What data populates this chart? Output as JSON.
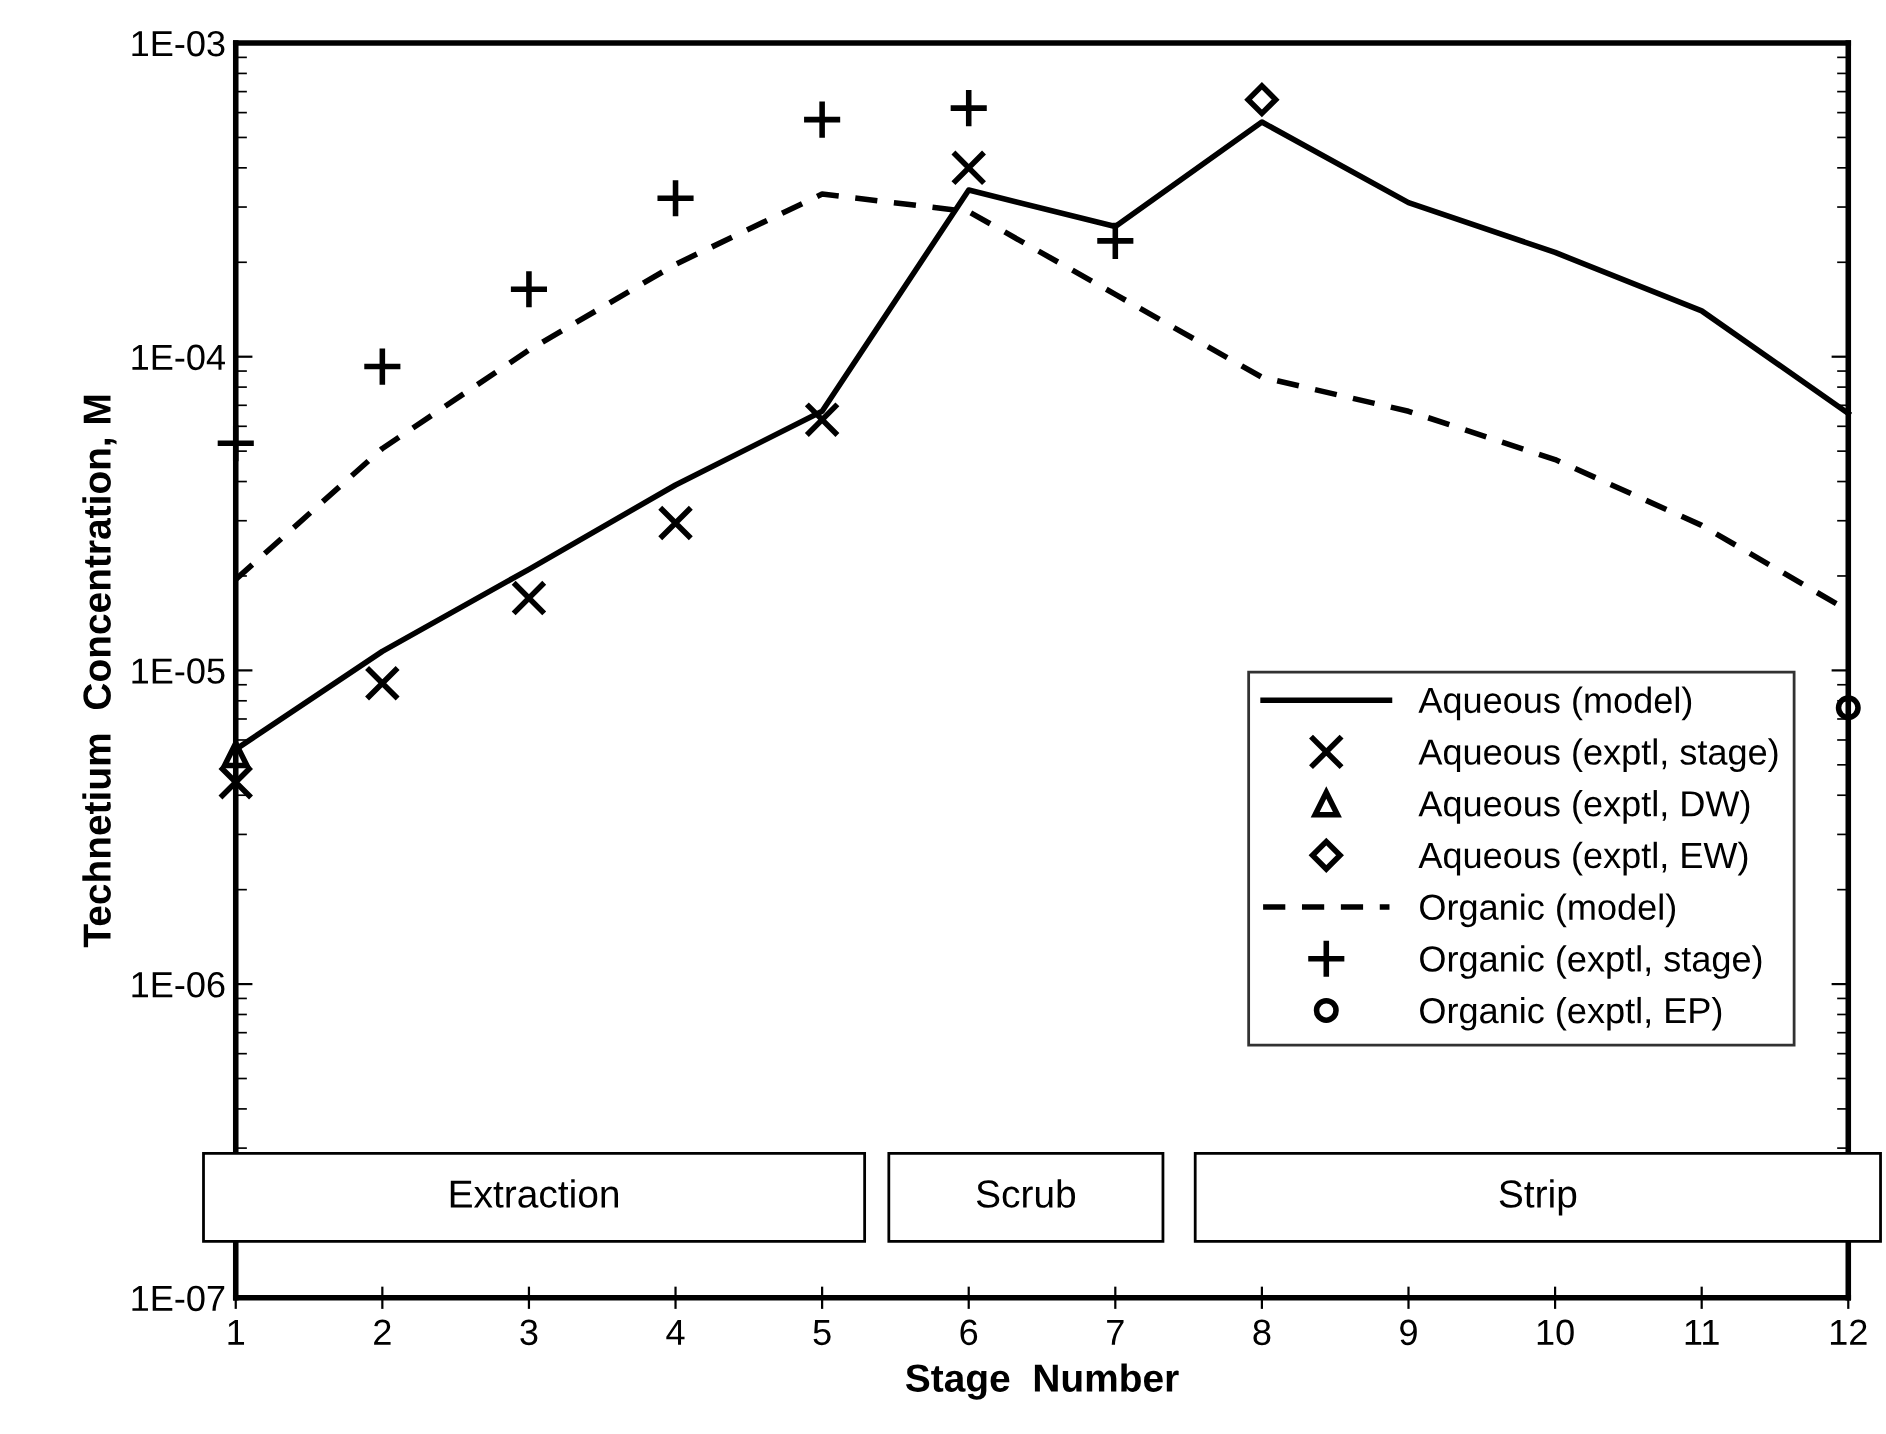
{
  "chart_data": {
    "type": "line",
    "xlabel": "Stage  Number",
    "ylabel": "Technetium  Concentration, M",
    "log": "y",
    "x": [
      1,
      2,
      3,
      4,
      5,
      6,
      7,
      8,
      9,
      10,
      11,
      12
    ],
    "xlim": [
      1,
      12
    ],
    "xticks": [
      1,
      2,
      3,
      4,
      5,
      6,
      7,
      8,
      9,
      10,
      11,
      12
    ],
    "ylim": [
      1e-07,
      0.001
    ],
    "yticks": [
      {
        "value": 1e-07,
        "label": "1E-07"
      },
      {
        "value": 1e-06,
        "label": "1E-06"
      },
      {
        "value": 1e-05,
        "label": "1E-05"
      },
      {
        "value": 0.0001,
        "label": "1E-04"
      },
      {
        "value": 0.001,
        "label": "1E-03"
      }
    ],
    "grid": false,
    "legend": "right",
    "series": [
      {
        "name": "Aqueous (model)",
        "color": "#000000",
        "line_style": "solid",
        "marker": "none",
        "values": [
          5.6e-06,
          1.15e-05,
          2.1e-05,
          3.9e-05,
          6.7e-05,
          0.00034,
          0.00026,
          0.00056,
          0.00031,
          0.000215,
          0.00014,
          6.6e-05
        ]
      },
      {
        "name": "Aqueous (exptl, stage)",
        "type": "scatter",
        "color": "#000000",
        "marker": "cross",
        "x": [
          1,
          2,
          3,
          4,
          5,
          6
        ],
        "values": [
          4.4e-06,
          9.1e-06,
          1.7e-05,
          2.95e-05,
          6.3e-05,
          0.0004
        ]
      },
      {
        "name": "Aqueous (exptl, DW)",
        "type": "scatter",
        "color": "#000000",
        "marker": "triangle",
        "x": [
          1
        ],
        "values": [
          5.4e-06
        ]
      },
      {
        "name": "Aqueous (exptl, EW)",
        "type": "scatter",
        "color": "#000000",
        "marker": "diamond",
        "x": [
          8
        ],
        "values": [
          0.00066
        ]
      },
      {
        "name": "Organic (model)",
        "color": "#000000",
        "line_style": "dashed",
        "marker": "none",
        "values": [
          1.95e-05,
          5.1e-05,
          0.000105,
          0.000197,
          0.00033,
          0.00029,
          0.000158,
          8.6e-05,
          6.7e-05,
          4.7e-05,
          2.9e-05,
          1.55e-05
        ]
      },
      {
        "name": "Organic (exptl, stage)",
        "type": "scatter",
        "color": "#000000",
        "marker": "plus",
        "x": [
          1,
          2,
          3,
          4,
          5,
          6,
          7
        ],
        "values": [
          5.3e-05,
          9.3e-05,
          0.000164,
          0.00032,
          0.00057,
          0.00062,
          0.000234
        ]
      },
      {
        "name": "Organic (exptl, EP)",
        "type": "scatter",
        "color": "#000000",
        "marker": "circle",
        "x": [
          12
        ],
        "values": [
          7.6e-06
        ]
      }
    ],
    "annotations": [
      "Extraction",
      "Scrub",
      "Strip"
    ]
  }
}
